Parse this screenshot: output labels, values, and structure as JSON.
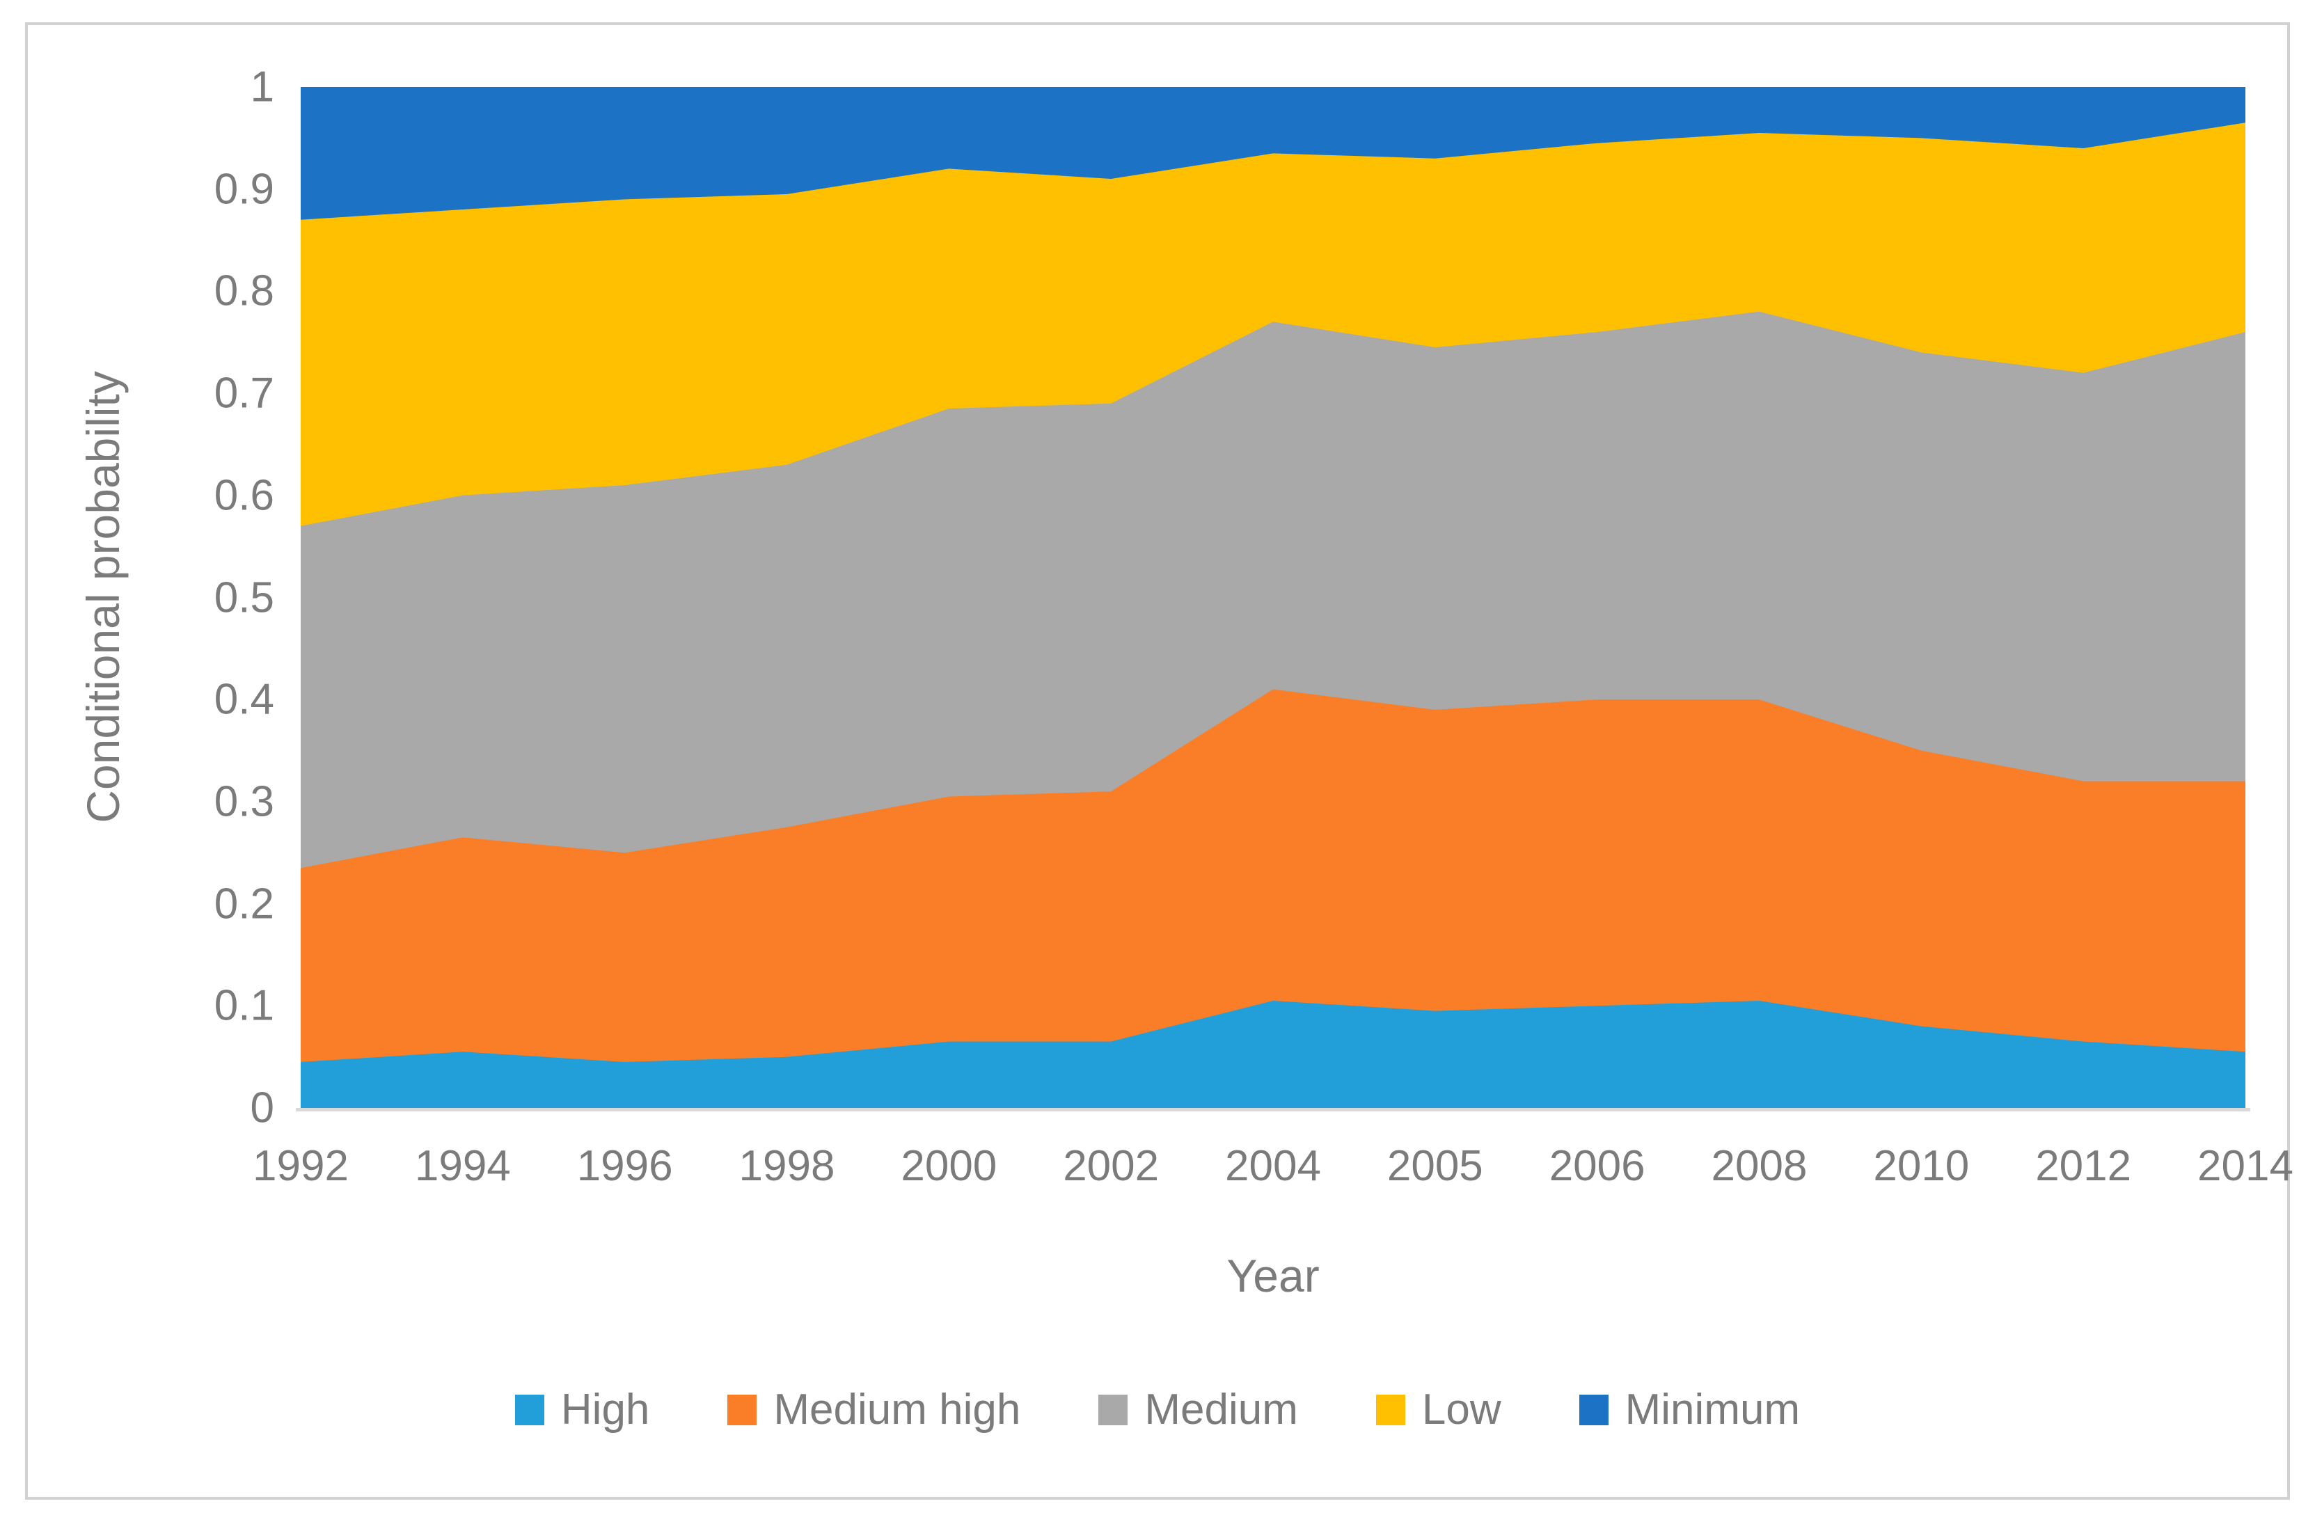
{
  "figure": {
    "x_axis_title": "Year",
    "y_axis_title": "Conditional probability",
    "y_tick_labels": [
      "0",
      "0.1",
      "0.2",
      "0.3",
      "0.4",
      "0.5",
      "0.6",
      "0.7",
      "0.8",
      "0.9",
      "1"
    ]
  },
  "colors": {
    "high": "#229fd9",
    "medium_high": "#f97e27",
    "medium": "#a9a9a9",
    "low": "#ffc002",
    "minimum": "#1c72c4",
    "axis_line": "#d9d9d9",
    "frame_border": "#d2d2d2",
    "text": "#7b7b7b"
  },
  "chart_data": {
    "type": "area",
    "stacked": true,
    "title": "",
    "xlabel": "Year",
    "ylabel": "Conditional probability",
    "ylim": [
      0,
      1
    ],
    "grid": false,
    "legend_position": "bottom",
    "categories": [
      "1992",
      "1994",
      "1996",
      "1998",
      "2000",
      "2002",
      "2004",
      "2005",
      "2006",
      "2008",
      "2010",
      "2012",
      "2014"
    ],
    "series": [
      {
        "name": "High",
        "color": "#229fd9",
        "values": [
          0.045,
          0.055,
          0.045,
          0.05,
          0.065,
          0.065,
          0.105,
          0.095,
          0.1,
          0.105,
          0.08,
          0.065,
          0.055
        ]
      },
      {
        "name": "Medium high",
        "color": "#f97e27",
        "values": [
          0.19,
          0.21,
          0.205,
          0.225,
          0.24,
          0.245,
          0.305,
          0.295,
          0.3,
          0.295,
          0.27,
          0.255,
          0.265
        ]
      },
      {
        "name": "Medium",
        "color": "#a9a9a9",
        "values": [
          0.335,
          0.335,
          0.36,
          0.355,
          0.38,
          0.38,
          0.36,
          0.355,
          0.36,
          0.38,
          0.39,
          0.4,
          0.44
        ]
      },
      {
        "name": "Low",
        "color": "#ffc002",
        "values": [
          0.3,
          0.28,
          0.28,
          0.265,
          0.235,
          0.22,
          0.165,
          0.185,
          0.185,
          0.175,
          0.21,
          0.22,
          0.205
        ]
      },
      {
        "name": "Minimum",
        "color": "#1c72c4",
        "values": [
          0.13,
          0.12,
          0.11,
          0.105,
          0.08,
          0.09,
          0.065,
          0.07,
          0.055,
          0.045,
          0.05,
          0.06,
          0.035
        ]
      }
    ],
    "cumulative_tops": {
      "High": [
        0.045,
        0.055,
        0.045,
        0.05,
        0.065,
        0.065,
        0.105,
        0.095,
        0.1,
        0.105,
        0.08,
        0.065,
        0.055
      ],
      "Medium high": [
        0.235,
        0.265,
        0.25,
        0.275,
        0.305,
        0.31,
        0.41,
        0.39,
        0.4,
        0.4,
        0.35,
        0.32,
        0.32
      ],
      "Medium": [
        0.57,
        0.6,
        0.61,
        0.63,
        0.685,
        0.69,
        0.77,
        0.745,
        0.76,
        0.78,
        0.74,
        0.72,
        0.76
      ],
      "Low": [
        0.87,
        0.88,
        0.89,
        0.895,
        0.92,
        0.91,
        0.935,
        0.93,
        0.945,
        0.955,
        0.95,
        0.94,
        0.965
      ],
      "Minimum": [
        1,
        1,
        1,
        1,
        1,
        1,
        1,
        1,
        1,
        1,
        1,
        1,
        1
      ]
    }
  }
}
